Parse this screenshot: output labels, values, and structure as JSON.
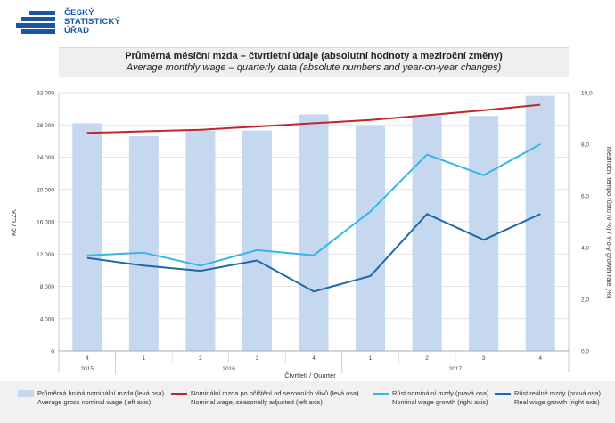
{
  "header": {
    "logo_lines": [
      "ČESKÝ",
      "STATISTICKÝ",
      "ÚŘAD"
    ],
    "title_cz": "Průměrná měsíční mzda – čtvrtletní údaje (absolutní hodnoty a meziroční změny)",
    "title_en": "Average monthly wage – quarterly data (absolute numbers and year-on-year changes)"
  },
  "colors": {
    "bar": "#c6d8f0",
    "seasonal_line": "#c0262b",
    "nominal_growth": "#35b6e3",
    "real_growth": "#1f68a8",
    "logo_blue": "#1b55a6"
  },
  "chart_data": {
    "type": "bar+line",
    "categories": [
      "4",
      "1",
      "2",
      "3",
      "4",
      "1",
      "2",
      "3",
      "4"
    ],
    "years": [
      {
        "label": "2015",
        "quarters": 1
      },
      {
        "label": "2016",
        "quarters": 4
      },
      {
        "label": "2017",
        "quarters": 4
      }
    ],
    "xlabel": "Čtvrtletí / Quarter",
    "ylabel_left": "Kč / CZK",
    "ylabel_right": "Meziroční tempo růstu (v %) / Y-o-y growth rate (%)",
    "ylim_left": [
      0,
      32000
    ],
    "yticks_left": [
      0,
      4000,
      8000,
      12000,
      16000,
      20000,
      24000,
      28000,
      32000
    ],
    "ytick_labels_left": [
      "0",
      "4 000",
      "8 000",
      "12 000",
      "16 000",
      "20 000",
      "24 000",
      "28 000",
      "32 000"
    ],
    "ylim_right": [
      0,
      10
    ],
    "yticks_right": [
      0,
      2,
      4,
      6,
      8,
      10
    ],
    "ytick_labels_right": [
      "0,0",
      "2,0",
      "4,0",
      "6,0",
      "8,0",
      "10,0"
    ],
    "series": [
      {
        "name": "Průměrná hrubá nominální mzda (levá osa) / Average gross nominal wage (left axis)",
        "kind": "bar",
        "axis": "left",
        "values": [
          28200,
          26600,
          27300,
          27300,
          29300,
          27900,
          29200,
          29100,
          31600
        ]
      },
      {
        "name": "Nominální mzda po očištění od sezonních vlivů (levá osa) / Nominal wage, seasonally adjusted (left axis)",
        "kind": "line",
        "axis": "left",
        "values": [
          27000,
          27200,
          27400,
          27800,
          28200,
          28600,
          29200,
          29800,
          30500
        ]
      },
      {
        "name": "Růst nominální mzdy (pravá osa) / Nominal wage growth (right axis)",
        "kind": "line",
        "axis": "right",
        "values": [
          3.7,
          3.8,
          3.3,
          3.9,
          3.7,
          5.4,
          7.6,
          6.8,
          8.0
        ]
      },
      {
        "name": "Růst reálné mzdy (pravá osa) / Real wage growth (right axis)",
        "kind": "line",
        "axis": "right",
        "values": [
          3.6,
          3.3,
          3.1,
          3.5,
          2.3,
          2.9,
          5.3,
          4.3,
          5.3
        ]
      }
    ]
  },
  "legend": [
    {
      "line1": "Průměrná hrubá nominální mzda (levá osa)",
      "line2": "Average gross nominal wage (left axis)"
    },
    {
      "line1": "Nominální mzda po očištění od sezonních vlivů (levá osa)",
      "line2": "Nominal wage, seasonally adjusted (left axis)"
    },
    {
      "line1": "Růst nominální mzdy (pravá osa)",
      "line2": "Nominal wage growth (right axis)"
    },
    {
      "line1": "Růst reálné mzdy (pravá osa)",
      "line2": "Real wage growth (right axis)"
    }
  ]
}
